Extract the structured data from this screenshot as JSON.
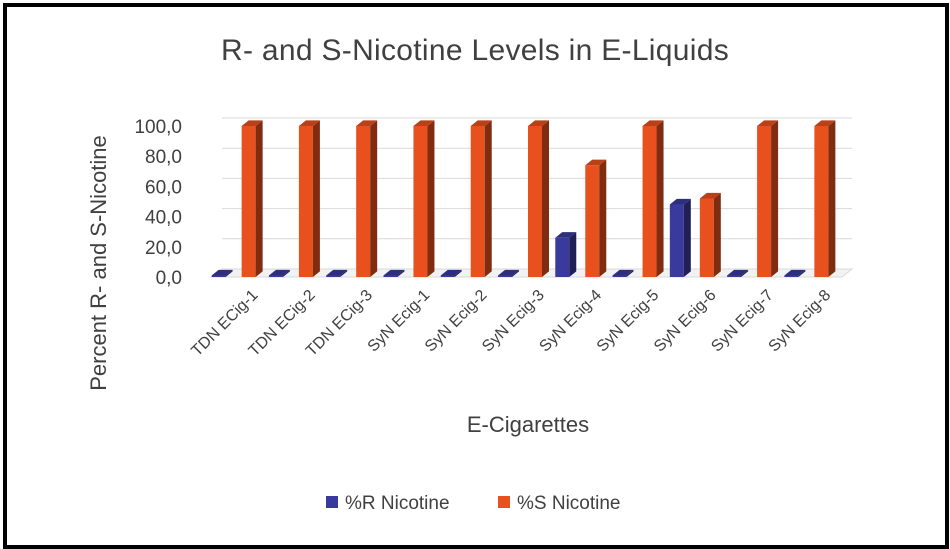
{
  "chart_data": {
    "type": "bar",
    "title": "R- and S-Nicotine Levels in E-Liquids",
    "xlabel": "E-Cigarettes",
    "ylabel": "Percent R- and S-Nicotine",
    "ylim": [
      0,
      100
    ],
    "yticks": [
      "0,0",
      "20,0",
      "40,0",
      "60,0",
      "80,0",
      "100,0"
    ],
    "categories": [
      "TDN ECig-1",
      "TDN ECig-2",
      "TDN ECig-3",
      "SyN Ecig-1",
      "SyN Ecig-2",
      "SyN Ecig-3",
      "SyN Ecig-4",
      "SyN Ecig-5",
      "SyN Ecig-6",
      "SyN Ecig-7",
      "SyN Ecig-8"
    ],
    "series": [
      {
        "name": "%R Nicotine",
        "color": "#3a3a9e",
        "values": [
          0,
          0,
          0,
          0,
          0,
          0,
          26,
          0,
          48,
          0,
          0
        ]
      },
      {
        "name": "%S Nicotine",
        "color": "#e8501e",
        "values": [
          100,
          100,
          100,
          100,
          100,
          100,
          74,
          100,
          52,
          100,
          100
        ]
      }
    ],
    "grid": true,
    "legend_position": "bottom"
  }
}
